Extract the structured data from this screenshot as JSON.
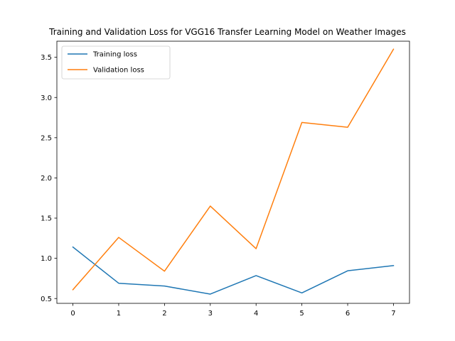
{
  "chart_data": {
    "type": "line",
    "title": "Training and Validation Loss for VGG16 Transfer Learning Model on Weather Images",
    "xlabel": "",
    "ylabel": "",
    "x": [
      0,
      1,
      2,
      3,
      4,
      5,
      6,
      7
    ],
    "xlim": [
      -0.35,
      7.35
    ],
    "ylim": [
      0.44,
      3.7
    ],
    "x_ticks": [
      "0",
      "1",
      "2",
      "3",
      "4",
      "5",
      "6",
      "7"
    ],
    "y_ticks": [
      "0.5",
      "1.0",
      "1.5",
      "2.0",
      "2.5",
      "3.0",
      "3.5"
    ],
    "grid": false,
    "legend_position": "top-left",
    "series": [
      {
        "name": "Training loss",
        "color": "#1f77b4",
        "values": [
          1.14,
          0.69,
          0.655,
          0.555,
          0.785,
          0.57,
          0.845,
          0.91
        ]
      },
      {
        "name": "Validation loss",
        "color": "#ff7f0e",
        "values": [
          0.61,
          1.26,
          0.84,
          1.65,
          1.12,
          2.69,
          2.63,
          3.6
        ]
      }
    ]
  }
}
